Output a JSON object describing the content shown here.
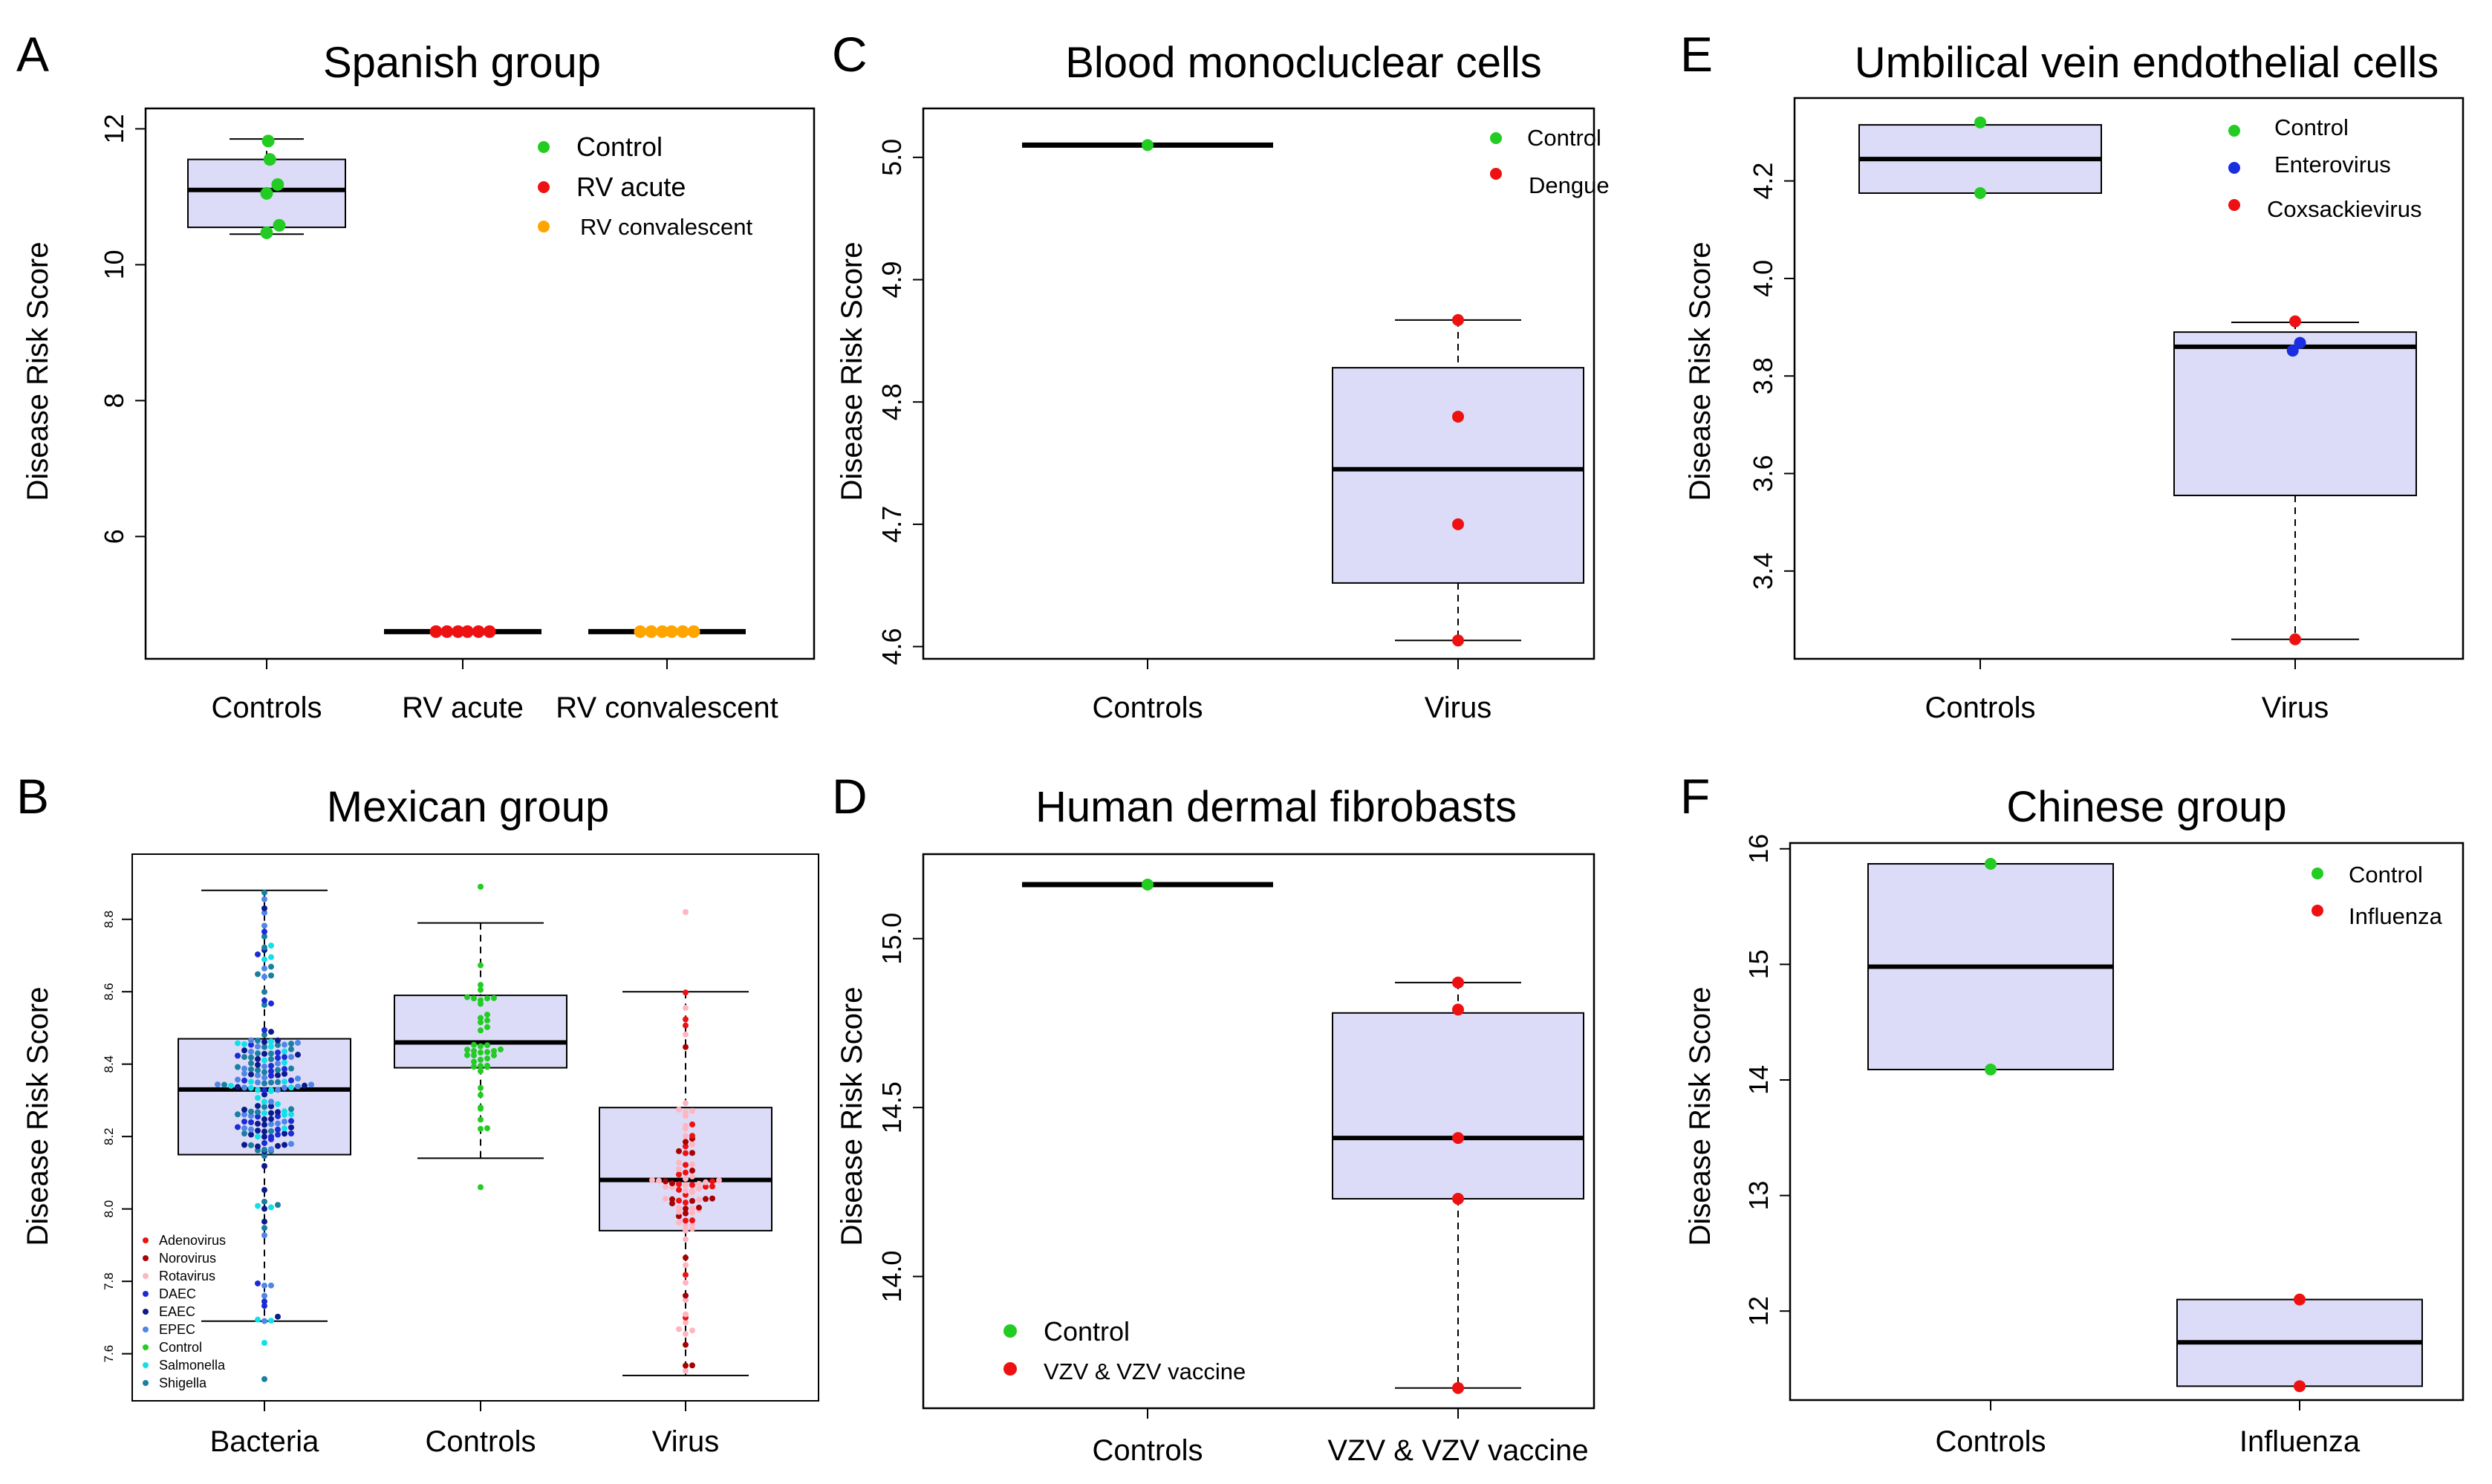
{
  "figure": {
    "background": "#ffffff",
    "box_fill": "#dcdcf8"
  },
  "chart_data": [
    {
      "id": "A",
      "panel_label": "A",
      "type": "box",
      "title": "Spanish group",
      "ylabel": "Disease Risk Score",
      "ylim": [
        4.2,
        12.3
      ],
      "yticks": [
        6,
        8,
        10,
        12
      ],
      "categories": [
        "Controls",
        "RV acute",
        "RV convalescent"
      ],
      "boxes": [
        {
          "cat": 0,
          "q1": 10.55,
          "median": 11.1,
          "q3": 11.55,
          "wlo": 10.45,
          "whi": 11.85
        },
        {
          "cat": 1,
          "median": 4.6,
          "flat": true
        },
        {
          "cat": 2,
          "median": 4.6,
          "flat": true
        }
      ],
      "points": [
        {
          "series": 0,
          "cat": 0,
          "dx": 0.01,
          "y": 11.82
        },
        {
          "series": 0,
          "cat": 0,
          "dx": 0.02,
          "y": 11.55
        },
        {
          "series": 0,
          "cat": 0,
          "dx": 0.07,
          "y": 11.18
        },
        {
          "series": 0,
          "cat": 0,
          "dx": 0.0,
          "y": 11.05
        },
        {
          "series": 0,
          "cat": 0,
          "dx": 0.08,
          "y": 10.58
        },
        {
          "series": 0,
          "cat": 0,
          "dx": 0.0,
          "y": 10.47
        },
        {
          "series": 1,
          "cat": 1,
          "dx": -0.17,
          "y": 4.6
        },
        {
          "series": 1,
          "cat": 1,
          "dx": -0.1,
          "y": 4.6
        },
        {
          "series": 1,
          "cat": 1,
          "dx": -0.03,
          "y": 4.6
        },
        {
          "series": 1,
          "cat": 1,
          "dx": 0.03,
          "y": 4.6
        },
        {
          "series": 1,
          "cat": 1,
          "dx": 0.1,
          "y": 4.6
        },
        {
          "series": 1,
          "cat": 1,
          "dx": 0.17,
          "y": 4.6
        },
        {
          "series": 2,
          "cat": 2,
          "dx": -0.17,
          "y": 4.6
        },
        {
          "series": 2,
          "cat": 2,
          "dx": -0.1,
          "y": 4.6
        },
        {
          "series": 2,
          "cat": 2,
          "dx": -0.03,
          "y": 4.6
        },
        {
          "series": 2,
          "cat": 2,
          "dx": 0.03,
          "y": 4.6
        },
        {
          "series": 2,
          "cat": 2,
          "dx": 0.1,
          "y": 4.6
        },
        {
          "series": 2,
          "cat": 2,
          "dx": 0.17,
          "y": 4.6
        }
      ],
      "series": [
        {
          "name": "Control",
          "color": "#22cc22"
        },
        {
          "name": "RV acute",
          "color": "#ee1111"
        },
        {
          "name": "RV convalescent",
          "color": "#ffa500"
        }
      ],
      "legend_position": "top-right"
    },
    {
      "id": "B",
      "panel_label": "B",
      "type": "box",
      "title": "Mexican group",
      "ylabel": "Disease Risk Score",
      "ylim": [
        7.47,
        8.98
      ],
      "yticks": [
        7.6,
        7.8,
        8.0,
        8.2,
        8.4,
        8.6,
        8.8
      ],
      "categories": [
        "Bacteria",
        "Controls",
        "Virus"
      ],
      "boxes": [
        {
          "cat": 0,
          "q1": 8.15,
          "median": 8.33,
          "q3": 8.47,
          "wlo": 7.69,
          "whi": 8.88
        },
        {
          "cat": 1,
          "q1": 8.39,
          "median": 8.46,
          "q3": 8.59,
          "wlo": 8.14,
          "whi": 8.79
        },
        {
          "cat": 2,
          "q1": 7.94,
          "median": 8.08,
          "q3": 8.28,
          "wlo": 7.54,
          "whi": 8.6
        }
      ],
      "swarm": [
        {
          "cat": 0,
          "series": [
            3,
            4,
            5,
            7,
            8
          ],
          "n": 190,
          "seed": 11,
          "outliers": [
            7.63,
            7.53
          ]
        },
        {
          "cat": 1,
          "series": [
            6
          ],
          "n": 42,
          "seed": 23,
          "outliers": [
            8.89,
            8.06
          ]
        },
        {
          "cat": 2,
          "series": [
            0,
            1,
            2,
            2
          ],
          "n": 95,
          "seed": 37,
          "outliers": [
            8.82
          ]
        }
      ],
      "series": [
        {
          "name": "Adenovirus",
          "color": "#ee1111"
        },
        {
          "name": "Norovirus",
          "color": "#aa0000"
        },
        {
          "name": "Rotavirus",
          "color": "#ffb6c1"
        },
        {
          "name": "DAEC",
          "color": "#1c2cd4"
        },
        {
          "name": "EAEC",
          "color": "#0b1b8c"
        },
        {
          "name": "EPEC",
          "color": "#4f86e8"
        },
        {
          "name": "Control",
          "color": "#22cc22"
        },
        {
          "name": "Salmonella",
          "color": "#11e0e8"
        },
        {
          "name": "Shigella",
          "color": "#1b7fa0"
        }
      ],
      "legend_position": "bottom-left"
    },
    {
      "id": "C",
      "panel_label": "C",
      "type": "box",
      "title": "Blood monocluclear cells",
      "ylabel": "Disease Risk Score",
      "ylim": [
        4.59,
        5.04
      ],
      "yticks": [
        4.6,
        4.7,
        4.8,
        4.9,
        5.0
      ],
      "categories": [
        "Controls",
        "Virus"
      ],
      "boxes": [
        {
          "cat": 0,
          "median": 5.01,
          "flat": true
        },
        {
          "cat": 1,
          "q1": 4.652,
          "median": 4.745,
          "q3": 4.828,
          "wlo": 4.605,
          "whi": 4.867
        }
      ],
      "points": [
        {
          "series": 0,
          "cat": 0,
          "dx": 0.0,
          "y": 5.01
        },
        {
          "series": 1,
          "cat": 1,
          "dx": 0.0,
          "y": 4.867
        },
        {
          "series": 1,
          "cat": 1,
          "dx": 0.0,
          "y": 4.788
        },
        {
          "series": 1,
          "cat": 1,
          "dx": 0.0,
          "y": 4.7
        },
        {
          "series": 1,
          "cat": 1,
          "dx": 0.0,
          "y": 4.605
        }
      ],
      "series": [
        {
          "name": "Control",
          "color": "#22cc22"
        },
        {
          "name": "Dengue",
          "color": "#ee1111"
        }
      ],
      "legend_position": "top-right"
    },
    {
      "id": "D",
      "panel_label": "D",
      "type": "box",
      "title": "Human dermal fibrobasts",
      "ylabel": "Disease Risk Score",
      "ylim": [
        13.61,
        15.25
      ],
      "yticks": [
        14.0,
        14.5,
        15.0
      ],
      "categories": [
        "Controls",
        "VZV & VZV vaccine"
      ],
      "boxes": [
        {
          "cat": 0,
          "median": 15.16,
          "flat": true
        },
        {
          "cat": 1,
          "q1": 14.23,
          "median": 14.41,
          "q3": 14.78,
          "wlo": 13.67,
          "whi": 14.87
        }
      ],
      "points": [
        {
          "series": 0,
          "cat": 0,
          "dx": 0.0,
          "y": 15.16
        },
        {
          "series": 1,
          "cat": 1,
          "dx": 0.0,
          "y": 14.87
        },
        {
          "series": 1,
          "cat": 1,
          "dx": 0.0,
          "y": 14.79
        },
        {
          "series": 1,
          "cat": 1,
          "dx": 0.0,
          "y": 14.41
        },
        {
          "series": 1,
          "cat": 1,
          "dx": 0.0,
          "y": 14.23
        },
        {
          "series": 1,
          "cat": 1,
          "dx": 0.0,
          "y": 13.67
        }
      ],
      "series": [
        {
          "name": "Control",
          "color": "#22cc22"
        },
        {
          "name": "VZV & VZV vaccine",
          "color": "#ee1111"
        }
      ],
      "legend_position": "bottom-left"
    },
    {
      "id": "E",
      "panel_label": "E",
      "type": "box",
      "title": "Umbilical vein endothelial cells",
      "ylabel": "Disease Risk Score",
      "ylim": [
        3.22,
        4.37
      ],
      "yticks": [
        3.4,
        3.6,
        3.8,
        4.0,
        4.2
      ],
      "categories": [
        "Controls",
        "Virus"
      ],
      "boxes": [
        {
          "cat": 0,
          "q1": 4.175,
          "median": 4.245,
          "q3": 4.315,
          "wlo": 4.175,
          "whi": 4.315
        },
        {
          "cat": 1,
          "q1": 3.555,
          "median": 3.86,
          "q3": 3.89,
          "wlo": 3.26,
          "whi": 3.91
        }
      ],
      "points": [
        {
          "series": 0,
          "cat": 0,
          "dx": 0.0,
          "y": 4.32
        },
        {
          "series": 0,
          "cat": 0,
          "dx": 0.0,
          "y": 4.175
        },
        {
          "series": 2,
          "cat": 1,
          "dx": 0.0,
          "y": 3.912
        },
        {
          "series": 1,
          "cat": 1,
          "dx": 0.02,
          "y": 3.868
        },
        {
          "series": 1,
          "cat": 1,
          "dx": -0.01,
          "y": 3.852
        },
        {
          "series": 2,
          "cat": 1,
          "dx": 0.0,
          "y": 3.26
        }
      ],
      "series": [
        {
          "name": "Control",
          "color": "#22cc22"
        },
        {
          "name": "Enterovirus",
          "color": "#1a2ee0"
        },
        {
          "name": "Coxsackievirus",
          "color": "#ee1111"
        }
      ],
      "legend_position": "top-right"
    },
    {
      "id": "F",
      "panel_label": "F",
      "type": "box",
      "title": "Chinese group",
      "ylabel": "Disease Risk Score",
      "ylim": [
        11.23,
        16.05
      ],
      "yticks": [
        12,
        13,
        14,
        15,
        16
      ],
      "categories": [
        "Controls",
        "Influenza"
      ],
      "boxes": [
        {
          "cat": 0,
          "q1": 14.09,
          "median": 14.98,
          "q3": 15.87,
          "wlo": 14.09,
          "whi": 15.87
        },
        {
          "cat": 1,
          "q1": 11.35,
          "median": 11.73,
          "q3": 12.1,
          "wlo": 11.35,
          "whi": 12.1
        }
      ],
      "points": [
        {
          "series": 0,
          "cat": 0,
          "dx": 0.0,
          "y": 15.87
        },
        {
          "series": 0,
          "cat": 0,
          "dx": 0.0,
          "y": 14.09
        },
        {
          "series": 1,
          "cat": 1,
          "dx": 0.0,
          "y": 12.1
        },
        {
          "series": 1,
          "cat": 1,
          "dx": 0.0,
          "y": 11.35
        }
      ],
      "series": [
        {
          "name": "Control",
          "color": "#22cc22"
        },
        {
          "name": "Influenza",
          "color": "#ee1111"
        }
      ],
      "legend_position": "top-right"
    }
  ]
}
